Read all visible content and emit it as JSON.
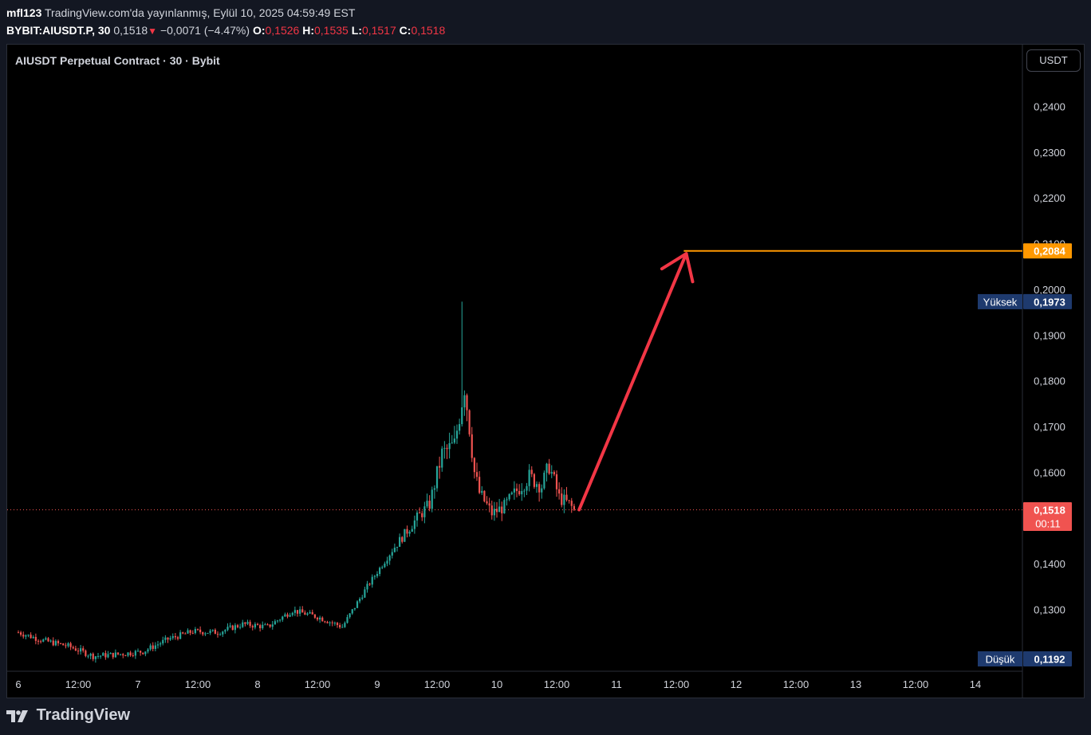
{
  "header": {
    "user": "mfl123",
    "published": "TradingView.com'da yayınlanmış, Eylül 10, 2025 04:59:49 EST",
    "symbol": "BYBIT:AIUSDT.P, 30",
    "last": "0,1518",
    "change": "−0,0071 (−4.47%)",
    "o_label": "O:",
    "o_value": "0,1526",
    "h_label": "H:",
    "h_value": "0,1535",
    "l_label": "L:",
    "l_value": "0,1517",
    "c_label": "C:",
    "c_value": "0,1518"
  },
  "legend": {
    "title": "AIUSDT Perpetual Contract · 30 · Bybit"
  },
  "currency_button": "USDT",
  "footer": {
    "brand": "TradingView"
  },
  "colors": {
    "up": "#26a69a",
    "down": "#ef5350",
    "target_line": "#ff9800",
    "arrow": "#f23645",
    "badge_blue": "#1e3a6e",
    "badge_red": "#f05350"
  },
  "chart_data": {
    "type": "candlestick",
    "title": "AIUSDT Perpetual Contract · 30 · Bybit",
    "currency": "USDT",
    "y_axis": {
      "ticks": [
        "0,1300",
        "0,1400",
        "0,1500",
        "0,1600",
        "0,1700",
        "0,1800",
        "0,1900",
        "0,2000",
        "0,2100",
        "0,2200",
        "0,2300",
        "0,2400"
      ],
      "tick_values": [
        0.13,
        0.14,
        0.15,
        0.16,
        0.17,
        0.18,
        0.19,
        0.2,
        0.21,
        0.22,
        0.23,
        0.24
      ],
      "range": [
        0.1165,
        0.2535
      ]
    },
    "x_axis": {
      "ticks": [
        "6",
        "12:00",
        "7",
        "12:00",
        "8",
        "12:00",
        "9",
        "12:00",
        "10",
        "12:00",
        "11",
        "12:00",
        "12",
        "12:00",
        "13",
        "12:00",
        "14"
      ],
      "tick_index": [
        0,
        24,
        48,
        72,
        96,
        120,
        144,
        168,
        192,
        216,
        240,
        264,
        288,
        312,
        336,
        360,
        384
      ],
      "bar_interval": "30"
    },
    "bars_shown": 224,
    "keypoints": [
      {
        "i": 0,
        "p": 0.125
      },
      {
        "i": 10,
        "p": 0.1232
      },
      {
        "i": 20,
        "p": 0.122
      },
      {
        "i": 30,
        "p": 0.1198
      },
      {
        "i": 40,
        "p": 0.1202
      },
      {
        "i": 50,
        "p": 0.1208
      },
      {
        "i": 60,
        "p": 0.1235
      },
      {
        "i": 70,
        "p": 0.1252
      },
      {
        "i": 80,
        "p": 0.125
      },
      {
        "i": 90,
        "p": 0.1268
      },
      {
        "i": 100,
        "p": 0.1262
      },
      {
        "i": 110,
        "p": 0.1298
      },
      {
        "i": 120,
        "p": 0.1284
      },
      {
        "i": 130,
        "p": 0.1262
      },
      {
        "i": 140,
        "p": 0.135
      },
      {
        "i": 150,
        "p": 0.143
      },
      {
        "i": 160,
        "p": 0.15
      },
      {
        "i": 165,
        "p": 0.153
      },
      {
        "i": 170,
        "p": 0.164
      },
      {
        "i": 175,
        "p": 0.166
      },
      {
        "i": 179,
        "p": 0.179
      },
      {
        "i": 181,
        "p": 0.17
      },
      {
        "i": 183,
        "p": 0.16
      },
      {
        "i": 185,
        "p": 0.1555
      },
      {
        "i": 190,
        "p": 0.151
      },
      {
        "i": 195,
        "p": 0.1525
      },
      {
        "i": 200,
        "p": 0.156
      },
      {
        "i": 205,
        "p": 0.159
      },
      {
        "i": 210,
        "p": 0.157
      },
      {
        "i": 213,
        "p": 0.1615
      },
      {
        "i": 217,
        "p": 0.1545
      },
      {
        "i": 221,
        "p": 0.153
      },
      {
        "i": 223,
        "p": 0.1518
      }
    ],
    "high": {
      "label": "Yüksek",
      "value": 0.1973,
      "text": "0,1973",
      "bar_index": 178
    },
    "low": {
      "label": "Düşük",
      "value": 0.1192,
      "text": "0,1192"
    },
    "last_price": {
      "value": 0.1518,
      "text": "0,1518",
      "countdown": "00:11"
    },
    "target_line": {
      "value": 0.2084,
      "text": "0,2084",
      "from_index": 267
    },
    "arrow": {
      "from": {
        "i": 225,
        "p": 0.1518
      },
      "to": {
        "i": 268,
        "p": 0.2078
      }
    }
  }
}
